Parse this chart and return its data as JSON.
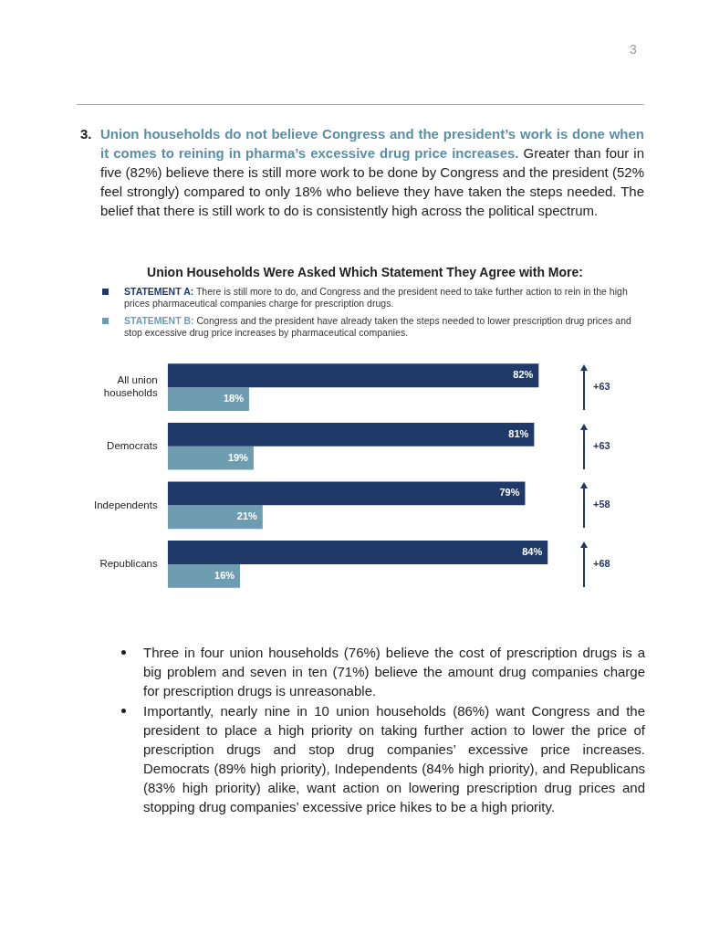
{
  "chart_data": {
    "type": "bar",
    "orientation": "horizontal",
    "title": "Union Households Were Asked Which Statement They Agree with More:",
    "categories": [
      "All union households",
      "Democrats",
      "Independents",
      "Republicans"
    ],
    "series": [
      {
        "name": "STATEMENT A: There is still more to do, and Congress and the president need to take further action to rein in the high prices pharmaceutical companies charge for prescription drugs.",
        "color": "#1f3a68",
        "values": [
          82,
          81,
          79,
          84
        ],
        "value_labels": [
          "82%",
          "81%",
          "79%",
          "84%"
        ]
      },
      {
        "name": "STATEMENT B: Congress and the president have already taken the steps needed to lower prescription drug prices and stop excessive drug price increases by pharmaceutical companies.",
        "color": "#6e9db2",
        "values": [
          18,
          19,
          21,
          16
        ],
        "value_labels": [
          "18%",
          "19%",
          "21%",
          "16%"
        ]
      }
    ],
    "legend": "top",
    "tick_labels": "y",
    "annotations": [
      "3",
      "3.",
      "Union households do not believe Congress and the president’s work is done when it comes to reining in pharma’s excessive drug price increases.",
      "Greater than four in five (82%) believe there is still more work to be done by Congress and the president (52% feel strongly) compared to only 18% who believe they have taken the steps needed. The belief that there is still work to do is consistently high across the political spectrum.",
      "Three in four union households (76%) believe the cost of prescription drugs is a big problem and seven in ten (71%) believe the amount drug companies charge for prescription drugs is unreasonable.",
      "Importantly, nearly nine in 10 union households (86%) want Congress and the president to place a high priority on taking further action to lower the price of prescription drugs and stop drug companies’ excessive price increases. Democrats (89% high priority), Independents (84% high priority), and Republicans (83% high priority) alike, want action on lowering prescription drug prices and stopping drug companies’ excessive price hikes to be a high priority.",
      "+63",
      "+63",
      "+58",
      "+68"
    ]
  }
}
